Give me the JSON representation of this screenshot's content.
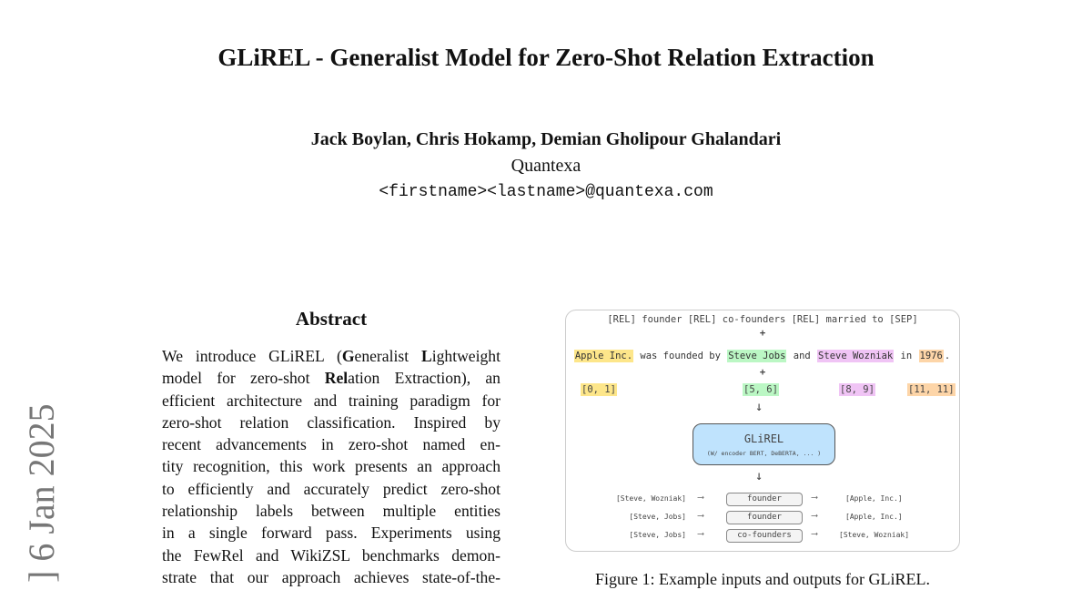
{
  "title": "GLiREL - Generalist Model for Zero-Shot Relation Extraction",
  "authors": "Jack Boylan, Chris Hokamp, Demian Gholipour Ghalandari",
  "affiliation": "Quantexa",
  "email": "<firstname><lastname>@quantexa.com",
  "arxiv_stamp": "] 6 Jan 2025",
  "abstract": {
    "heading": "Abstract",
    "lines": [
      [
        [
          "We introduce GLiREL (",
          0
        ],
        [
          "G",
          1
        ],
        [
          "eneralist ",
          0
        ],
        [
          "L",
          1
        ],
        [
          "ightweight",
          0
        ]
      ],
      [
        [
          "model for zero-shot ",
          0
        ],
        [
          "Rel",
          1
        ],
        [
          "ation Extraction), an",
          0
        ]
      ],
      [
        [
          "efficient architecture and training paradigm for",
          0
        ]
      ],
      [
        [
          "zero-shot relation classification.  Inspired by",
          0
        ]
      ],
      [
        [
          "recent advancements in zero-shot named en-",
          0
        ]
      ],
      [
        [
          "tity recognition, this work presents an approach",
          0
        ]
      ],
      [
        [
          "to efficiently and accurately predict zero-shot",
          0
        ]
      ],
      [
        [
          "relationship labels between multiple entities",
          0
        ]
      ],
      [
        [
          "in a single forward pass.  Experiments using",
          0
        ]
      ],
      [
        [
          "the FewRel and WikiZSL benchmarks demon-",
          0
        ]
      ],
      [
        [
          "strate that our approach achieves state-of-the-",
          0
        ]
      ]
    ]
  },
  "figure": {
    "labels_line": "[REL] founder [REL] co-founders [REL] married to [SEP]",
    "plus": "+",
    "sentence": [
      {
        "t": "Apple Inc.",
        "c": "#fde68a"
      },
      {
        "t": " was founded by ",
        "c": ""
      },
      {
        "t": "Steve Jobs",
        "c": "#bbf7c4"
      },
      {
        "t": " and ",
        "c": ""
      },
      {
        "t": "Steve Wozniak",
        "c": "#f0c4f5"
      },
      {
        "t": " in ",
        "c": ""
      },
      {
        "t": "1976",
        "c": "#fdd5a8"
      },
      {
        "t": ".",
        "c": ""
      }
    ],
    "spans": [
      {
        "t": "[0, 1]",
        "c": "#fde68a"
      },
      {
        "t": "[5, 6]",
        "c": "#bbf7c4"
      },
      {
        "t": "[8, 9]",
        "c": "#f0c4f5"
      },
      {
        "t": "[11, 11]",
        "c": "#fdd5a8"
      }
    ],
    "model_name": "GLiREL",
    "model_sub": "(W/ encoder BERT, DeBERTA, ... )",
    "model_color": "#bfe3fd",
    "outputs": [
      {
        "head": "[Steve, Wozniak]",
        "rel": "founder",
        "tail": "[Apple, Inc.]"
      },
      {
        "head": "[Steve, Jobs]",
        "rel": "founder",
        "tail": "[Apple, Inc.]"
      },
      {
        "head": "[Steve, Jobs]",
        "rel": "co-founders",
        "tail": "[Steve, Wozniak]"
      }
    ],
    "caption": "Figure 1: Example inputs and outputs for GLiREL."
  }
}
